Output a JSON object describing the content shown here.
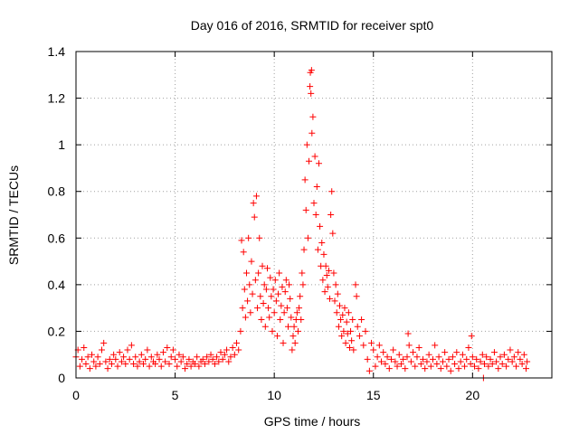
{
  "chart_data": {
    "type": "scatter",
    "title": "Day 016 of 2016, SRMTID for receiver spt0",
    "xlabel": "GPS time / hours",
    "ylabel": "SRMTID / TECUs",
    "xlim": [
      0,
      24
    ],
    "ylim": [
      0,
      1.4
    ],
    "x_ticks": [
      "0",
      "5",
      "10",
      "15",
      "20"
    ],
    "y_ticks": [
      "0",
      "0.2",
      "0.4",
      "0.6",
      "0.8",
      "1",
      "1.2",
      "1.4"
    ],
    "grid": true,
    "marker": "+",
    "series": [
      {
        "name": "SRMTID",
        "color": "#ff0000",
        "points": [
          [
            0.0,
            0.09
          ],
          [
            0.1,
            0.12
          ],
          [
            0.2,
            0.05
          ],
          [
            0.3,
            0.08
          ],
          [
            0.4,
            0.13
          ],
          [
            0.5,
            0.06
          ],
          [
            0.6,
            0.09
          ],
          [
            0.7,
            0.04
          ],
          [
            0.8,
            0.1
          ],
          [
            0.9,
            0.07
          ],
          [
            1.0,
            0.05
          ],
          [
            1.1,
            0.09
          ],
          [
            1.2,
            0.06
          ],
          [
            1.3,
            0.12
          ],
          [
            1.4,
            0.15
          ],
          [
            1.5,
            0.07
          ],
          [
            1.6,
            0.04
          ],
          [
            1.7,
            0.08
          ],
          [
            1.8,
            0.06
          ],
          [
            1.9,
            0.1
          ],
          [
            2.0,
            0.08
          ],
          [
            2.1,
            0.05
          ],
          [
            2.2,
            0.11
          ],
          [
            2.3,
            0.07
          ],
          [
            2.4,
            0.09
          ],
          [
            2.5,
            0.06
          ],
          [
            2.6,
            0.12
          ],
          [
            2.7,
            0.08
          ],
          [
            2.8,
            0.14
          ],
          [
            2.9,
            0.06
          ],
          [
            3.0,
            0.09
          ],
          [
            3.1,
            0.05
          ],
          [
            3.2,
            0.07
          ],
          [
            3.3,
            0.1
          ],
          [
            3.4,
            0.06
          ],
          [
            3.5,
            0.08
          ],
          [
            3.6,
            0.12
          ],
          [
            3.7,
            0.05
          ],
          [
            3.8,
            0.09
          ],
          [
            3.9,
            0.07
          ],
          [
            4.0,
            0.06
          ],
          [
            4.1,
            0.1
          ],
          [
            4.2,
            0.08
          ],
          [
            4.3,
            0.05
          ],
          [
            4.4,
            0.11
          ],
          [
            4.5,
            0.07
          ],
          [
            4.6,
            0.13
          ],
          [
            4.7,
            0.06
          ],
          [
            4.8,
            0.09
          ],
          [
            4.9,
            0.12
          ],
          [
            5.0,
            0.08
          ],
          [
            5.1,
            0.05
          ],
          [
            5.2,
            0.1
          ],
          [
            5.3,
            0.07
          ],
          [
            5.4,
            0.09
          ],
          [
            5.5,
            0.04
          ],
          [
            5.6,
            0.06
          ],
          [
            5.7,
            0.08
          ],
          [
            5.8,
            0.05
          ],
          [
            5.9,
            0.07
          ],
          [
            6.0,
            0.06
          ],
          [
            6.1,
            0.09
          ],
          [
            6.2,
            0.05
          ],
          [
            6.3,
            0.07
          ],
          [
            6.4,
            0.08
          ],
          [
            6.5,
            0.06
          ],
          [
            6.6,
            0.09
          ],
          [
            6.7,
            0.07
          ],
          [
            6.8,
            0.1
          ],
          [
            6.9,
            0.08
          ],
          [
            7.0,
            0.06
          ],
          [
            7.1,
            0.09
          ],
          [
            7.2,
            0.07
          ],
          [
            7.3,
            0.11
          ],
          [
            7.4,
            0.08
          ],
          [
            7.5,
            0.1
          ],
          [
            7.6,
            0.12
          ],
          [
            7.7,
            0.07
          ],
          [
            7.8,
            0.09
          ],
          [
            7.9,
            0.13
          ],
          [
            8.0,
            0.1
          ],
          [
            8.1,
            0.15
          ],
          [
            8.2,
            0.12
          ],
          [
            8.3,
            0.2
          ],
          [
            8.35,
            0.59
          ],
          [
            8.4,
            0.3
          ],
          [
            8.45,
            0.54
          ],
          [
            8.5,
            0.38
          ],
          [
            8.55,
            0.26
          ],
          [
            8.6,
            0.45
          ],
          [
            8.65,
            0.33
          ],
          [
            8.7,
            0.6
          ],
          [
            8.75,
            0.4
          ],
          [
            8.8,
            0.28
          ],
          [
            8.85,
            0.5
          ],
          [
            8.9,
            0.36
          ],
          [
            8.95,
            0.75
          ],
          [
            9.0,
            0.69
          ],
          [
            9.05,
            0.42
          ],
          [
            9.1,
            0.78
          ],
          [
            9.15,
            0.3
          ],
          [
            9.2,
            0.45
          ],
          [
            9.25,
            0.6
          ],
          [
            9.3,
            0.35
          ],
          [
            9.35,
            0.25
          ],
          [
            9.4,
            0.48
          ],
          [
            9.45,
            0.32
          ],
          [
            9.5,
            0.4
          ],
          [
            9.55,
            0.22
          ],
          [
            9.6,
            0.38
          ],
          [
            9.65,
            0.47
          ],
          [
            9.7,
            0.3
          ],
          [
            9.75,
            0.26
          ],
          [
            9.8,
            0.43
          ],
          [
            9.85,
            0.35
          ],
          [
            9.9,
            0.2
          ],
          [
            9.95,
            0.38
          ],
          [
            10.0,
            0.28
          ],
          [
            10.05,
            0.42
          ],
          [
            10.1,
            0.33
          ],
          [
            10.15,
            0.18
          ],
          [
            10.2,
            0.36
          ],
          [
            10.25,
            0.45
          ],
          [
            10.3,
            0.25
          ],
          [
            10.35,
            0.31
          ],
          [
            10.4,
            0.39
          ],
          [
            10.45,
            0.15
          ],
          [
            10.5,
            0.28
          ],
          [
            10.55,
            0.37
          ],
          [
            10.6,
            0.42
          ],
          [
            10.65,
            0.3
          ],
          [
            10.7,
            0.22
          ],
          [
            10.75,
            0.4
          ],
          [
            10.8,
            0.34
          ],
          [
            10.85,
            0.26
          ],
          [
            10.9,
            0.12
          ],
          [
            10.95,
            0.18
          ],
          [
            11.0,
            0.22
          ],
          [
            11.05,
            0.15
          ],
          [
            11.1,
            0.25
          ],
          [
            11.15,
            0.28
          ],
          [
            11.2,
            0.2
          ],
          [
            11.25,
            0.3
          ],
          [
            11.3,
            0.35
          ],
          [
            11.35,
            0.25
          ],
          [
            11.4,
            0.45
          ],
          [
            11.45,
            0.4
          ],
          [
            11.5,
            0.55
          ],
          [
            11.55,
            0.85
          ],
          [
            11.6,
            0.72
          ],
          [
            11.65,
            1.0
          ],
          [
            11.7,
            0.6
          ],
          [
            11.75,
            0.93
          ],
          [
            11.8,
            1.25
          ],
          [
            11.82,
            1.31
          ],
          [
            11.85,
            1.22
          ],
          [
            11.88,
            1.32
          ],
          [
            11.9,
            1.05
          ],
          [
            11.95,
            1.12
          ],
          [
            12.0,
            0.75
          ],
          [
            12.05,
            0.95
          ],
          [
            12.1,
            0.7
          ],
          [
            12.15,
            0.82
          ],
          [
            12.2,
            0.55
          ],
          [
            12.25,
            0.92
          ],
          [
            12.3,
            0.65
          ],
          [
            12.35,
            0.48
          ],
          [
            12.4,
            0.58
          ],
          [
            12.45,
            0.42
          ],
          [
            12.5,
            0.53
          ],
          [
            12.55,
            0.37
          ],
          [
            12.6,
            0.48
          ],
          [
            12.65,
            0.44
          ],
          [
            12.7,
            0.39
          ],
          [
            12.75,
            0.46
          ],
          [
            12.8,
            0.34
          ],
          [
            12.85,
            0.7
          ],
          [
            12.9,
            0.8
          ],
          [
            12.95,
            0.62
          ],
          [
            13.0,
            0.45
          ],
          [
            13.05,
            0.33
          ],
          [
            13.1,
            0.4
          ],
          [
            13.15,
            0.28
          ],
          [
            13.2,
            0.36
          ],
          [
            13.25,
            0.22
          ],
          [
            13.3,
            0.31
          ],
          [
            13.35,
            0.25
          ],
          [
            13.4,
            0.18
          ],
          [
            13.45,
            0.27
          ],
          [
            13.5,
            0.2
          ],
          [
            13.55,
            0.3
          ],
          [
            13.6,
            0.15
          ],
          [
            13.65,
            0.24
          ],
          [
            13.7,
            0.19
          ],
          [
            13.75,
            0.28
          ],
          [
            13.8,
            0.13
          ],
          [
            13.85,
            0.2
          ],
          [
            13.9,
            0.16
          ],
          [
            13.95,
            0.25
          ],
          [
            14.0,
            0.12
          ],
          [
            14.1,
            0.4
          ],
          [
            14.15,
            0.35
          ],
          [
            14.2,
            0.22
          ],
          [
            14.3,
            0.18
          ],
          [
            14.4,
            0.25
          ],
          [
            14.5,
            0.14
          ],
          [
            14.6,
            0.2
          ],
          [
            14.7,
            0.08
          ],
          [
            14.8,
            0.03
          ],
          [
            14.9,
            0.15
          ],
          [
            15.0,
            0.12
          ],
          [
            15.1,
            0.05
          ],
          [
            15.2,
            0.09
          ],
          [
            15.3,
            0.14
          ],
          [
            15.4,
            0.07
          ],
          [
            15.5,
            0.11
          ],
          [
            15.6,
            0.06
          ],
          [
            15.7,
            0.09
          ],
          [
            15.8,
            0.04
          ],
          [
            15.9,
            0.08
          ],
          [
            16.0,
            0.12
          ],
          [
            16.1,
            0.07
          ],
          [
            16.2,
            0.05
          ],
          [
            16.3,
            0.1
          ],
          [
            16.4,
            0.06
          ],
          [
            16.5,
            0.08
          ],
          [
            16.6,
            0.04
          ],
          [
            16.7,
            0.09
          ],
          [
            16.75,
            0.19
          ],
          [
            16.8,
            0.14
          ],
          [
            16.9,
            0.07
          ],
          [
            17.0,
            0.11
          ],
          [
            17.1,
            0.05
          ],
          [
            17.2,
            0.09
          ],
          [
            17.3,
            0.13
          ],
          [
            17.4,
            0.06
          ],
          [
            17.5,
            0.08
          ],
          [
            17.6,
            0.04
          ],
          [
            17.7,
            0.07
          ],
          [
            17.8,
            0.1
          ],
          [
            17.9,
            0.05
          ],
          [
            18.0,
            0.08
          ],
          [
            18.1,
            0.14
          ],
          [
            18.2,
            0.06
          ],
          [
            18.3,
            0.09
          ],
          [
            18.4,
            0.04
          ],
          [
            18.5,
            0.07
          ],
          [
            18.6,
            0.11
          ],
          [
            18.7,
            0.05
          ],
          [
            18.8,
            0.08
          ],
          [
            18.9,
            0.03
          ],
          [
            19.0,
            0.09
          ],
          [
            19.1,
            0.06
          ],
          [
            19.2,
            0.11
          ],
          [
            19.3,
            0.04
          ],
          [
            19.4,
            0.07
          ],
          [
            19.5,
            0.1
          ],
          [
            19.6,
            0.05
          ],
          [
            19.7,
            0.08
          ],
          [
            19.8,
            0.13
          ],
          [
            19.9,
            0.06
          ],
          [
            19.95,
            0.18
          ],
          [
            20.0,
            0.09
          ],
          [
            20.1,
            0.05
          ],
          [
            20.2,
            0.08
          ],
          [
            20.3,
            0.04
          ],
          [
            20.4,
            0.07
          ],
          [
            20.5,
            0.1
          ],
          [
            20.55,
            0.0
          ],
          [
            20.6,
            0.06
          ],
          [
            20.7,
            0.09
          ],
          [
            20.8,
            0.05
          ],
          [
            20.9,
            0.08
          ],
          [
            21.0,
            0.06
          ],
          [
            21.1,
            0.11
          ],
          [
            21.2,
            0.07
          ],
          [
            21.3,
            0.04
          ],
          [
            21.4,
            0.09
          ],
          [
            21.5,
            0.06
          ],
          [
            21.6,
            0.1
          ],
          [
            21.7,
            0.05
          ],
          [
            21.8,
            0.08
          ],
          [
            21.9,
            0.12
          ],
          [
            22.0,
            0.07
          ],
          [
            22.1,
            0.09
          ],
          [
            22.2,
            0.05
          ],
          [
            22.3,
            0.11
          ],
          [
            22.4,
            0.08
          ],
          [
            22.5,
            0.06
          ],
          [
            22.6,
            0.1
          ],
          [
            22.7,
            0.04
          ],
          [
            22.75,
            0.07
          ]
        ]
      }
    ]
  }
}
